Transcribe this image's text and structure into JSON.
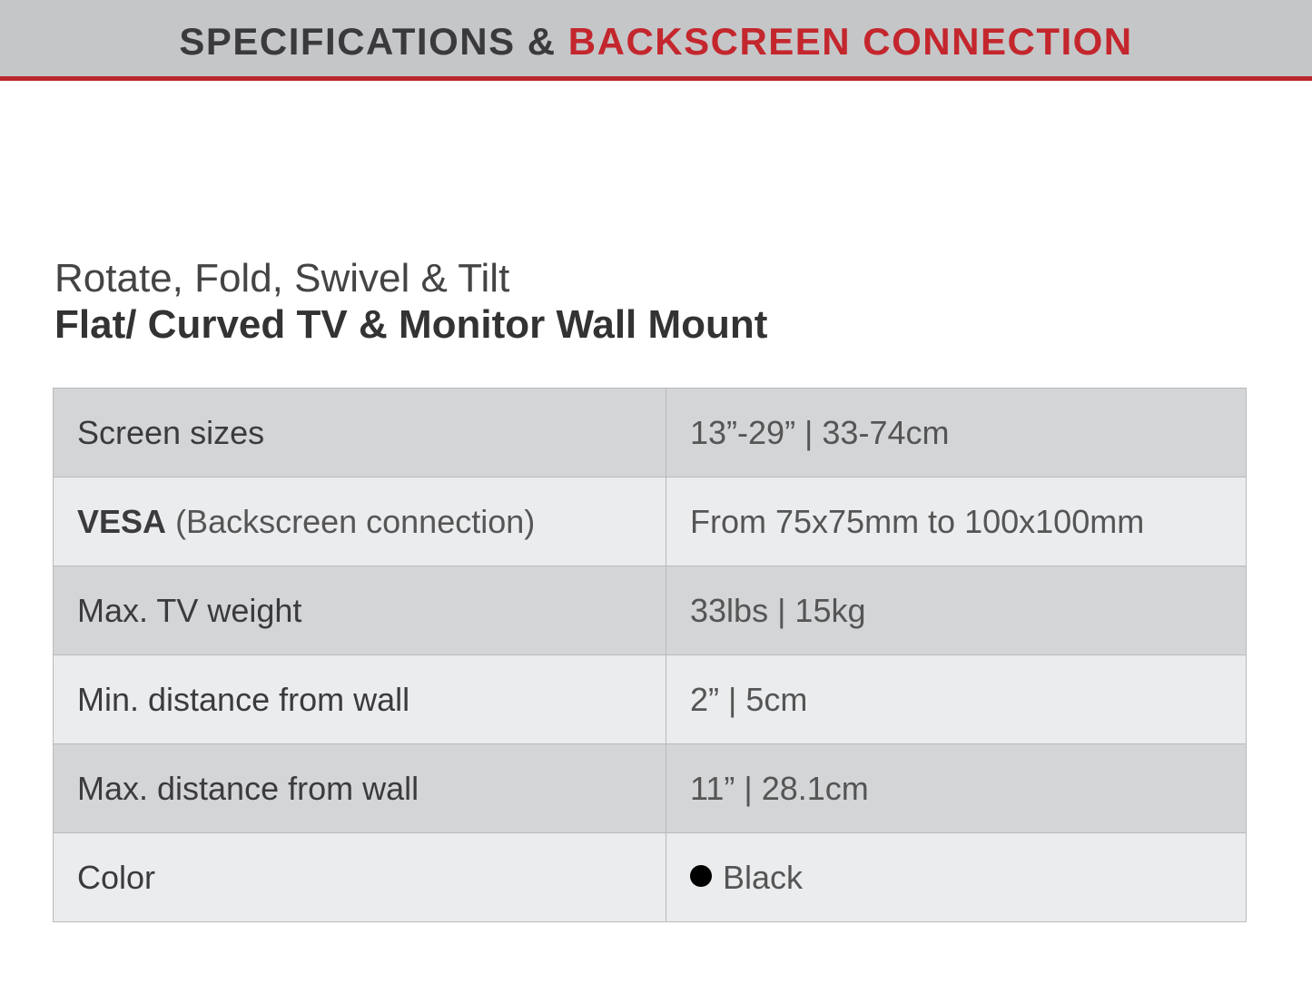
{
  "header": {
    "title_dark": "SPECIFICATIONS &",
    "title_red": "BACKSCREEN CONNECTION",
    "accent_color": "#c4262d"
  },
  "product": {
    "subtitle": "Rotate, Fold, Swivel & Tilt",
    "title": "Flat/ Curved TV & Monitor Wall Mount"
  },
  "specs": [
    {
      "label": "Screen sizes",
      "value": "13”-29” | 33-74cm"
    },
    {
      "label": "VESA",
      "label_note": "(Backscreen connection)",
      "value": "From 75x75mm to 100x100mm"
    },
    {
      "label": "Max. TV weight",
      "value": "33lbs | 15kg"
    },
    {
      "label": "Min. distance from wall",
      "value": "2” | 5cm"
    },
    {
      "label": "Max. distance from wall",
      "value": "11” | 28.1cm"
    },
    {
      "label": "Color",
      "value": "Black",
      "swatch": "#000000"
    }
  ]
}
